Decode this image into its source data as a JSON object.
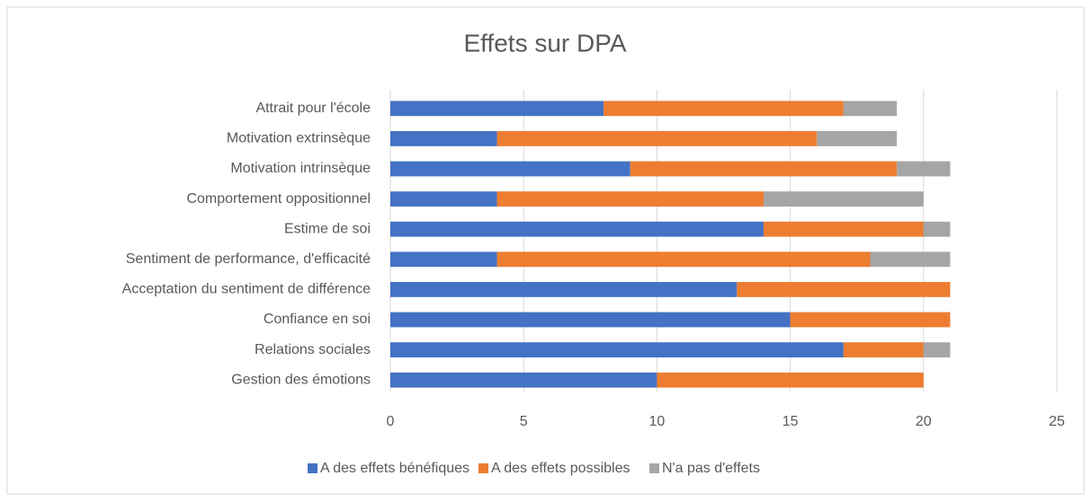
{
  "chart_data": {
    "type": "stacked_barh",
    "title": "Effets sur DPA",
    "categories": [
      "Attrait pour l'école",
      "Motivation extrinsèque",
      "Motivation intrinsèque",
      "Comportement oppositionnel",
      "Estime de soi",
      "Sentiment de performance, d'efficacité",
      "Acceptation du sentiment de différence",
      "Confiance en soi",
      "Relations sociales",
      "Gestion des émotions"
    ],
    "series": [
      {
        "name": "A des effets bénéfiques",
        "color": "#4472c4",
        "values": [
          8,
          4,
          9,
          4,
          14,
          4,
          13,
          15,
          17,
          10
        ]
      },
      {
        "name": "A des effets possibles",
        "color": "#ed7d31",
        "values": [
          9,
          12,
          10,
          10,
          6,
          14,
          8,
          6,
          3,
          10
        ]
      },
      {
        "name": "N'a pas d'effets",
        "color": "#a5a5a5",
        "values": [
          2,
          3,
          2,
          6,
          1,
          3,
          0,
          0,
          1,
          0
        ]
      }
    ],
    "xlim": [
      0,
      25
    ],
    "xticks": [
      0,
      5,
      10,
      15,
      20,
      25
    ],
    "grid": true,
    "legend": "bottom"
  }
}
